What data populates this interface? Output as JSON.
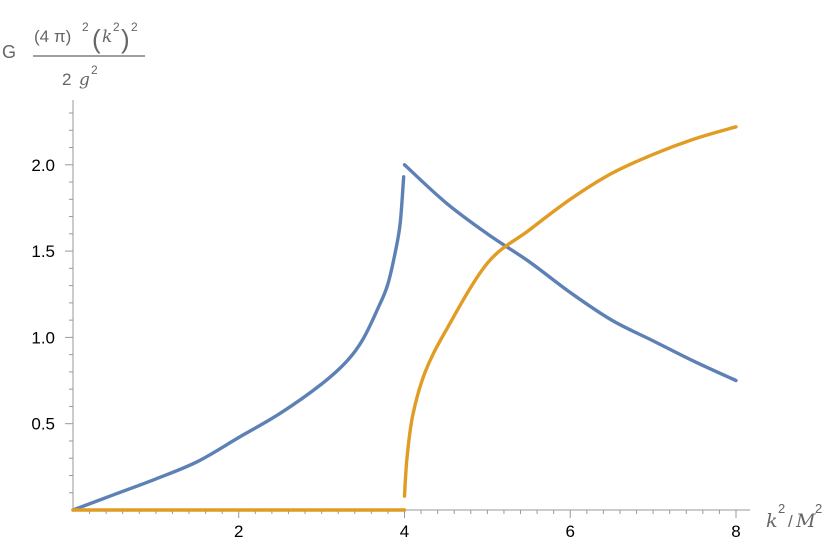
{
  "chart_data": {
    "type": "line",
    "xlabel": {
      "base": "k",
      "base_sup": "2",
      "sep": "/",
      "den": "M",
      "den_sup": "2"
    },
    "ylabel": {
      "prefix": "G",
      "num_paren": "(4 π)",
      "num_paren_sup": "2",
      "num_inner": "k",
      "num_inner_sup": "2",
      "num_outer_sup": "2",
      "den_coef": "2",
      "den_var": "g",
      "den_sup": "2"
    },
    "xlim": [
      0,
      8
    ],
    "ylim": [
      0,
      2.3
    ],
    "xticks": [
      {
        "value": 2,
        "label": "2"
      },
      {
        "value": 4,
        "label": "4"
      },
      {
        "value": 6,
        "label": "6"
      },
      {
        "value": 8,
        "label": "8"
      }
    ],
    "yticks": [
      {
        "value": 0.5,
        "label": "0.5"
      },
      {
        "value": 1.0,
        "label": "1.0"
      },
      {
        "value": 1.5,
        "label": "1.5"
      },
      {
        "value": 2.0,
        "label": "2.0"
      }
    ],
    "grid": false,
    "series": [
      {
        "color": "#5E81B5",
        "segments": [
          [
            [
              0.0,
              0.0
            ],
            [
              0.5,
              0.09
            ],
            [
              1.0,
              0.18
            ],
            [
              1.5,
              0.28
            ],
            [
              2.0,
              0.42
            ],
            [
              2.5,
              0.56
            ],
            [
              3.0,
              0.73
            ],
            [
              3.3,
              0.86
            ],
            [
              3.5,
              0.99
            ],
            [
              3.7,
              1.19
            ],
            [
              3.8,
              1.31
            ],
            [
              3.9,
              1.52
            ],
            [
              3.95,
              1.67
            ],
            [
              3.99,
              1.93
            ]
          ],
          [
            [
              4.0,
              2.0
            ],
            [
              4.5,
              1.78
            ],
            [
              5.0,
              1.6
            ],
            [
              5.5,
              1.44
            ],
            [
              6.0,
              1.26
            ],
            [
              6.5,
              1.1
            ],
            [
              7.0,
              0.98
            ],
            [
              7.5,
              0.86
            ],
            [
              8.0,
              0.75
            ]
          ]
        ]
      },
      {
        "color": "#E19C24",
        "segments": [
          [
            [
              0.0,
              0.0
            ],
            [
              4.0,
              0.0
            ]
          ],
          [
            [
              4.0,
              0.08
            ],
            [
              4.03,
              0.3
            ],
            [
              4.1,
              0.55
            ],
            [
              4.25,
              0.8
            ],
            [
              4.5,
              1.04
            ],
            [
              5.0,
              1.43
            ],
            [
              5.5,
              1.62
            ],
            [
              6.0,
              1.8
            ],
            [
              6.5,
              1.95
            ],
            [
              7.0,
              2.06
            ],
            [
              7.5,
              2.15
            ],
            [
              8.0,
              2.22
            ]
          ]
        ]
      }
    ]
  }
}
